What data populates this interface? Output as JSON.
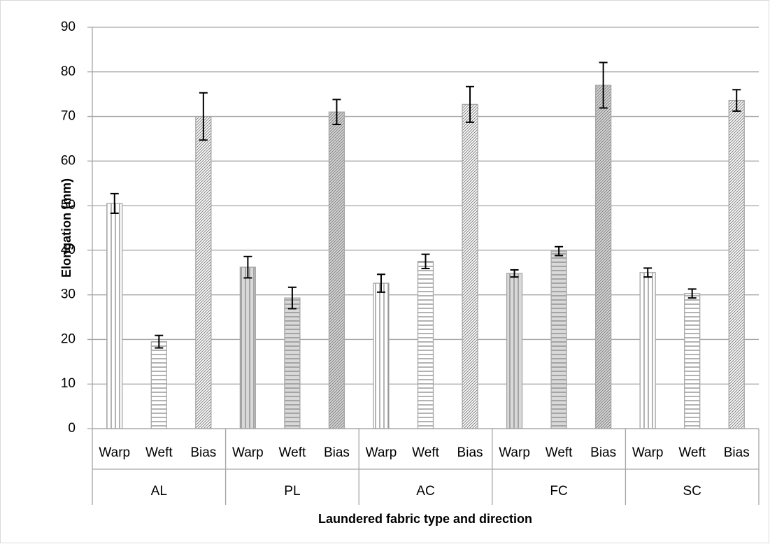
{
  "chart_data": {
    "type": "bar",
    "y_label": "Elongation (mm)",
    "x_label": "Laundered fabric type and direction",
    "categories": [
      "Warp",
      "Weft",
      "Bias",
      "Warp",
      "Weft",
      "Bias",
      "Warp",
      "Weft",
      "Bias",
      "Warp",
      "Weft",
      "Bias",
      "Warp",
      "Weft",
      "Bias"
    ],
    "groups": [
      "AL",
      "PL",
      "AC",
      "FC",
      "SC"
    ],
    "values": [
      50.5,
      19.5,
      70,
      36.2,
      29.3,
      71,
      32.6,
      37.5,
      72.7,
      34.8,
      39.8,
      77,
      35,
      30.3,
      73.6
    ],
    "errors": [
      2.2,
      1.4,
      5.3,
      2.4,
      2.4,
      2.8,
      2,
      1.6,
      4,
      0.8,
      1,
      5.1,
      1,
      1,
      2.4
    ],
    "bar_colors": [
      "#ffffff",
      "#ffffff",
      "#ffffff",
      "#d9d9d9",
      "#d9d9d9",
      "#d9d9d9",
      "#ffffff",
      "#ffffff",
      "#ffffff",
      "#d9d9d9",
      "#d9d9d9",
      "#d9d9d9",
      "#ffffff",
      "#ffffff",
      "#ffffff"
    ],
    "patterns": [
      "vertical",
      "horizontal",
      "diagonal",
      "vertical",
      "horizontal",
      "diagonal",
      "vertical",
      "horizontal",
      "diagonal",
      "vertical",
      "horizontal",
      "diagonal",
      "vertical",
      "horizontal",
      "diagonal"
    ],
    "ylim": [
      0,
      90
    ],
    "yticks": [
      0,
      10,
      20,
      30,
      40,
      50,
      60,
      70,
      80,
      90
    ],
    "grid": true
  }
}
